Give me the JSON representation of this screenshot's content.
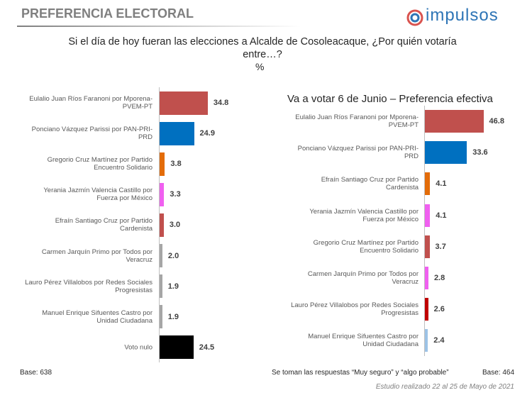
{
  "header": {
    "title": "PREFERENCIA ELECTORAL",
    "logo": "impulsos"
  },
  "question": "Si el día de hoy fueran las elecciones a Alcalde de Cosoleacaque, ¿Por quién votaría entre…?",
  "unit": "%",
  "chart_data": [
    {
      "type": "bar",
      "orientation": "horizontal",
      "categories": [
        "Eulalio Juan Ríos Faranoni por Mporena-PVEM-PT",
        "Ponciano Vázquez Parissi por PAN-PRI-PRD",
        "Gregorio Cruz Martínez por Partido Encuentro Solidario",
        "Yerania Jazmín Valencia Castillo por Fuerza por México",
        "Efraín Santiago Cruz por Partido Cardenista",
        "Carmen Jarquín Primo por Todos por Veracruz",
        "Lauro Pérez Villalobos por Redes Sociales Progresistas",
        "Manuel Enrique Sifuentes Castro por Unidad Ciudadana",
        "Voto nulo"
      ],
      "values": [
        34.8,
        24.9,
        3.8,
        3.3,
        3.0,
        2.0,
        1.9,
        1.9,
        24.5
      ],
      "value_labels": [
        "34.8",
        "24.9",
        "3.8",
        "3.3",
        "3.0",
        "2.0",
        "1.9",
        "1.9",
        "24.5"
      ],
      "colors": [
        "#c0504d",
        "#0070c0",
        "#e36c09",
        "#f060f0",
        "#c0504d",
        "#a6a6a6",
        "#a6a6a6",
        "#a6a6a6",
        "#000000"
      ],
      "xlim": [
        0,
        40
      ]
    },
    {
      "type": "bar",
      "orientation": "horizontal",
      "title": "Va a votar 6 de Junio – Preferencia efectiva",
      "categories": [
        "Eulalio Juan Ríos Faranoni por Mporena-PVEM-PT",
        "Ponciano Vázquez Parissi por PAN-PRI-PRD",
        "Efraín Santiago Cruz por Partido Cardenista",
        "Yerania Jazmín Valencia Castillo por Fuerza por México",
        "Gregorio Cruz Martínez por Partido Encuentro Solidario",
        "Carmen Jarquín Primo por Todos por Veracruz",
        "Lauro Pérez Villalobos por Redes Sociales Progresistas",
        "Manuel Enrique Sifuentes Castro por Unidad Ciudadana"
      ],
      "values": [
        46.8,
        33.6,
        4.1,
        4.1,
        3.7,
        2.8,
        2.6,
        2.4
      ],
      "colors": [
        "#c0504d",
        "#0070c0",
        "#e36c09",
        "#f060f0",
        "#c0504d",
        "#f060f0",
        "#c00000",
        "#9dc3e6"
      ],
      "xlim": [
        0,
        55
      ]
    }
  ],
  "footer": {
    "base_left": "Base: 638",
    "note": "Se toman las respuestas “Muy seguro” y “algo probable”",
    "base_right": "Base: 464",
    "date": "Estudio realizado 22 al 25 de Mayo de 2021"
  }
}
